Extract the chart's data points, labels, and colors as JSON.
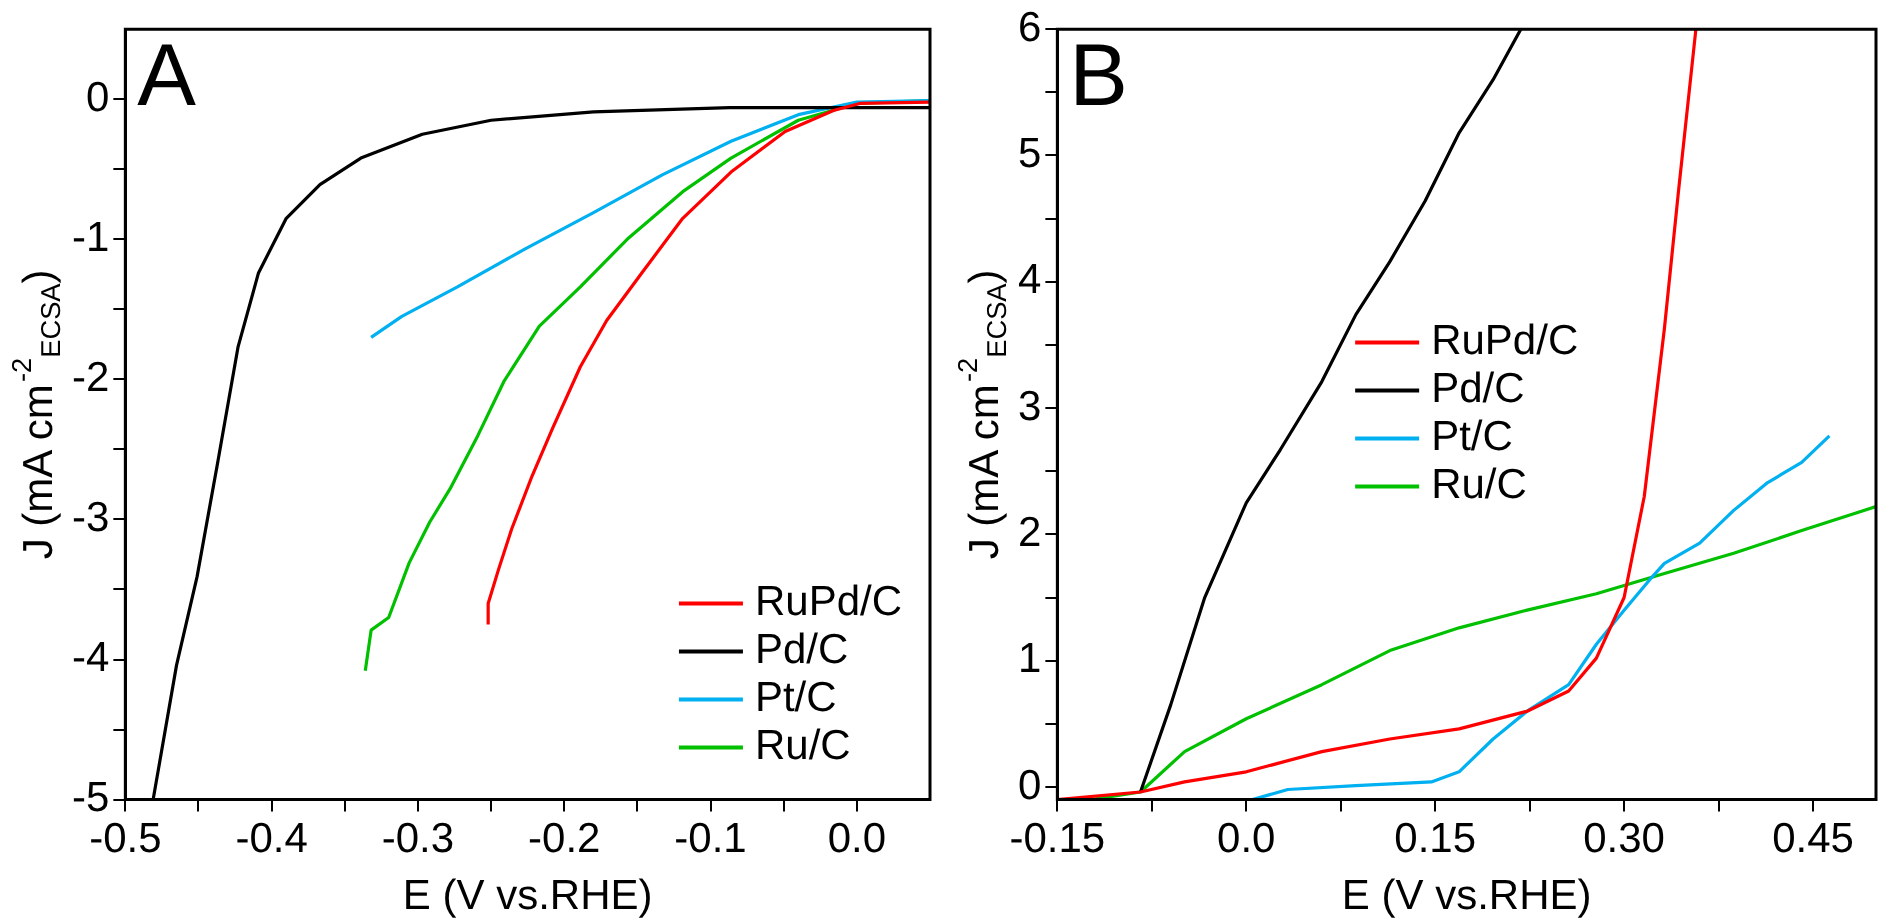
{
  "chart_data": [
    {
      "type": "line",
      "title": "A",
      "xlabel": "E (V vs.RHE)",
      "ylabel": "J (mA cm$^{-2}$$_{ECSA}$)",
      "xlim": [
        -0.5,
        0.05
      ],
      "ylim": [
        -5,
        0.5
      ],
      "xticks": [
        -0.5,
        {
          "value": -0.45,
          "label": null
        },
        -0.4,
        {
          "value": -0.35,
          "label": null
        },
        -0.3,
        {
          "value": -0.25,
          "label": null
        },
        -0.2,
        {
          "value": -0.15,
          "label": null
        },
        -0.1,
        {
          "value": -0.05,
          "label": null
        },
        {
          "value": 0,
          "label": "0.0"
        }
      ],
      "yticks": [
        -5,
        {
          "value": -4.5,
          "label": null
        },
        -4,
        {
          "value": -3.5,
          "label": null
        },
        -3,
        {
          "value": -2.5,
          "label": null
        },
        -2,
        {
          "value": -1.5,
          "label": null
        },
        -1,
        {
          "value": -0.5,
          "label": null
        },
        0
      ],
      "grid": false,
      "legend": "bottom right",
      "series": [
        {
          "name": "RuPd/C",
          "color": "#ff0000",
          "x": [
            -0.252,
            -0.252,
            -0.245,
            -0.236,
            -0.222,
            -0.208,
            -0.189,
            -0.171,
            -0.147,
            -0.119,
            -0.086,
            -0.049,
            -0.016,
            0.002,
            0.05
          ],
          "values": [
            -3.75,
            -3.6,
            -3.36,
            -3.07,
            -2.69,
            -2.35,
            -1.91,
            -1.58,
            -1.24,
            -0.85,
            -0.52,
            -0.23,
            -0.08,
            -0.03,
            -0.02
          ]
        },
        {
          "name": "Pd/C",
          "color": "#000000",
          "x": [
            -0.481,
            -0.465,
            -0.451,
            -0.437,
            -0.423,
            -0.409,
            -0.39,
            -0.367,
            -0.339,
            -0.297,
            -0.25,
            -0.18,
            -0.087,
            0.05
          ],
          "values": [
            -5,
            -4.04,
            -3.41,
            -2.6,
            -1.77,
            -1.24,
            -0.85,
            -0.61,
            -0.42,
            -0.25,
            -0.15,
            -0.09,
            -0.06,
            -0.06
          ]
        },
        {
          "name": "Pt/C",
          "color": "#00b0f0",
          "x": [
            -0.332,
            -0.311,
            -0.273,
            -0.227,
            -0.18,
            -0.133,
            -0.086,
            -0.04,
            0,
            0.05
          ],
          "values": [
            -1.7,
            -1.55,
            -1.34,
            -1.07,
            -0.81,
            -0.54,
            -0.3,
            -0.11,
            -0.02,
            -0.01
          ]
        },
        {
          "name": "Ru/C",
          "color": "#00c000",
          "x": [
            -0.336,
            -0.332,
            -0.32,
            -0.306,
            -0.292,
            -0.278,
            -0.259,
            -0.241,
            -0.217,
            -0.189,
            -0.157,
            -0.119,
            -0.086,
            -0.04,
            0,
            0.05
          ],
          "values": [
            -4.08,
            -3.79,
            -3.7,
            -3.31,
            -3.02,
            -2.78,
            -2.4,
            -2.01,
            -1.62,
            -1.34,
            -1,
            -0.66,
            -0.42,
            -0.15,
            -0.03,
            -0.01
          ]
        }
      ]
    },
    {
      "type": "line",
      "title": "B",
      "xlabel": "E (V vs.RHE)",
      "ylabel": "J (mA cm$^{-2}$$_{ECSA}$)",
      "xlim": [
        -0.15,
        0.5
      ],
      "ylim": [
        -0.1,
        6
      ],
      "xticks": [
        -0.15,
        {
          "value": -0.075,
          "label": null
        },
        {
          "value": 0,
          "label": "0.0"
        },
        {
          "value": 0.075,
          "label": null
        },
        0.15,
        {
          "value": 0.225,
          "label": null
        },
        {
          "value": 0.3,
          "label": "0.30"
        },
        {
          "value": 0.375,
          "label": null
        },
        0.45
      ],
      "yticks": [
        0,
        {
          "value": 0.5,
          "label": null
        },
        1,
        {
          "value": 1.5,
          "label": null
        },
        2,
        {
          "value": 2.5,
          "label": null
        },
        3,
        {
          "value": 3.5,
          "label": null
        },
        4,
        {
          "value": 4.5,
          "label": null
        },
        5,
        {
          "value": 5.5,
          "label": null
        },
        6
      ],
      "grid": false,
      "legend": "center",
      "series": [
        {
          "name": "RuPd/C",
          "color": "#ff0000",
          "x": [
            -0.15,
            -0.084,
            -0.049,
            0,
            0.06,
            0.114,
            0.169,
            0.223,
            0.256,
            0.278,
            0.3,
            0.316,
            0.332,
            0.343,
            0.357
          ],
          "values": [
            -0.1,
            -0.04,
            0.04,
            0.12,
            0.28,
            0.38,
            0.46,
            0.6,
            0.76,
            1.02,
            1.5,
            2.3,
            3.63,
            4.7,
            6
          ]
        },
        {
          "name": "Pd/C",
          "color": "#000000",
          "x": [
            -0.084,
            -0.06,
            -0.033,
            0,
            0.027,
            0.06,
            0.087,
            0.114,
            0.142,
            0.169,
            0.196,
            0.218
          ],
          "values": [
            -0.04,
            0.65,
            1.5,
            2.25,
            2.67,
            3.21,
            3.74,
            4.16,
            4.64,
            5.18,
            5.6,
            6
          ]
        },
        {
          "name": "Pt/C",
          "color": "#00b0f0",
          "x": [
            0.005,
            0.033,
            0.087,
            0.147,
            0.169,
            0.196,
            0.223,
            0.256,
            0.278,
            0.3,
            0.322,
            0.332,
            0.36,
            0.387,
            0.414,
            0.441,
            0.463
          ],
          "values": [
            -0.1,
            -0.02,
            0.01,
            0.04,
            0.12,
            0.38,
            0.6,
            0.81,
            1.13,
            1.4,
            1.66,
            1.77,
            1.93,
            2.19,
            2.41,
            2.57,
            2.78
          ]
        },
        {
          "name": "Ru/C",
          "color": "#00c000",
          "x": [
            -0.123,
            -0.084,
            -0.049,
            0,
            0.06,
            0.114,
            0.169,
            0.223,
            0.278,
            0.332,
            0.387,
            0.441,
            0.5
          ],
          "values": [
            -0.1,
            -0.04,
            0.28,
            0.54,
            0.81,
            1.08,
            1.26,
            1.4,
            1.53,
            1.69,
            1.85,
            2.03,
            2.22
          ]
        }
      ]
    }
  ]
}
